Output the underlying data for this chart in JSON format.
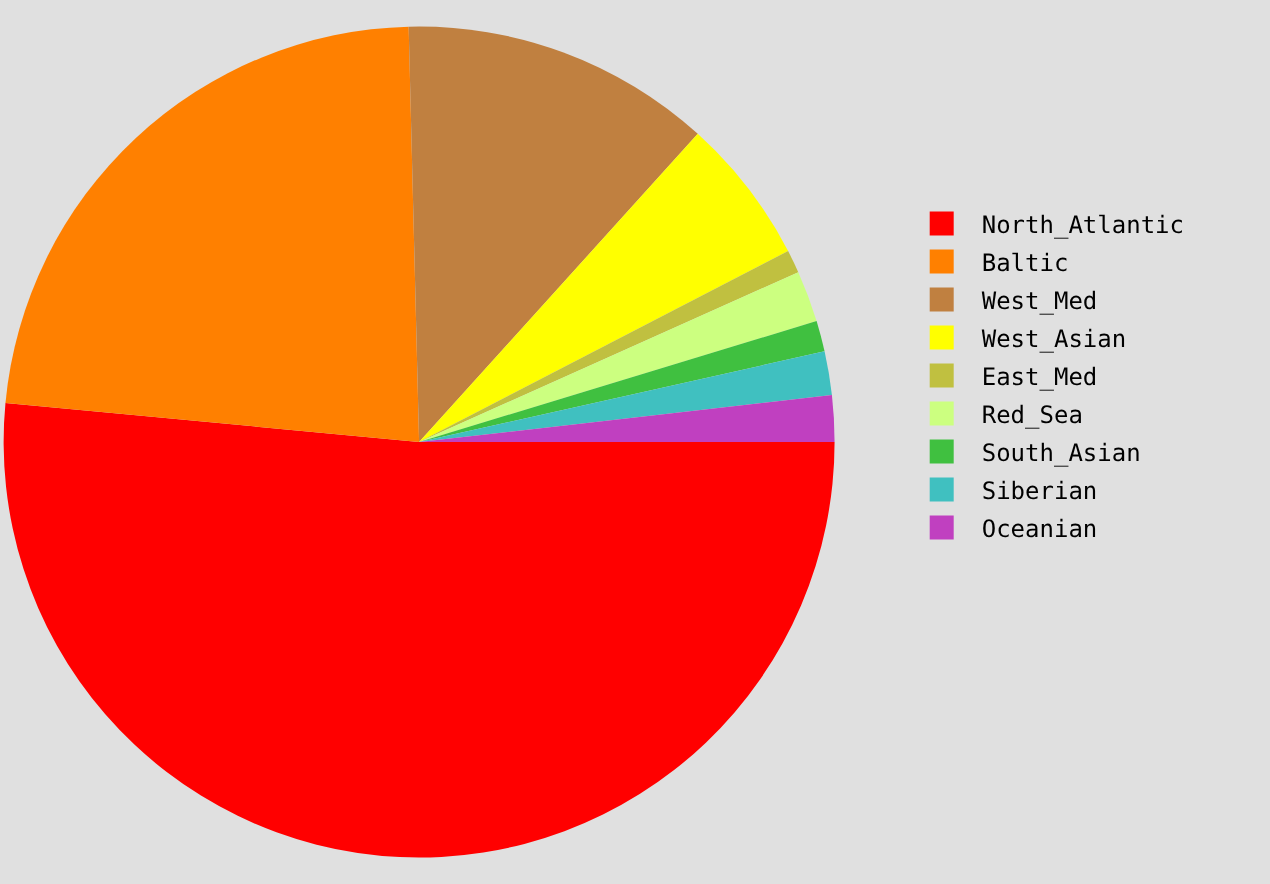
{
  "chart_data": {
    "type": "pie",
    "categories": [
      "North_Atlantic",
      "Baltic",
      "West_Med",
      "West_Asian",
      "East_Med",
      "Red_Sea",
      "South_Asian",
      "Siberian",
      "Oceanian"
    ],
    "values": [
      51.5,
      23.1,
      12.1,
      5.7,
      0.9,
      2.0,
      1.2,
      1.7,
      1.8
    ],
    "colors": [
      "#ff0000",
      "#ff8000",
      "#c08040",
      "#ffff00",
      "#c0c040",
      "#ccff80",
      "#40c040",
      "#40c0c0",
      "#c040c0"
    ],
    "legend": "top right"
  }
}
